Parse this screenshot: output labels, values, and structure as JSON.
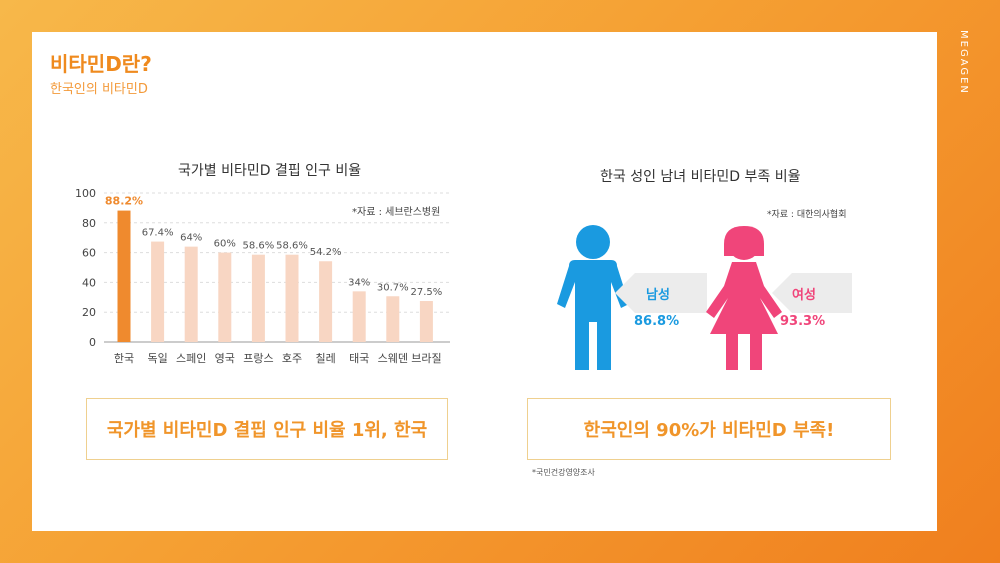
{
  "brand": "MEGAGEN",
  "header": {
    "title": "비타민D란?",
    "subtitle": "한국인의 비타민D"
  },
  "left_panel": {
    "source": "*자료 : 세브란스병원",
    "callout": "국가별 비타민D 결핍 인구 비율 1위, 한국"
  },
  "right_panel": {
    "title": "한국 성인 남녀 비타민D 부족 비율",
    "source": "*자료 : 대한의사협회",
    "male": {
      "label": "남성",
      "value": "86.8%",
      "color": "#1a9ae0"
    },
    "female": {
      "label": "여성",
      "value": "93.3%",
      "color": "#f0457a"
    },
    "callout": "한국인의 90%가 비타민D 부족!",
    "footnote": "*국민건강영양조사"
  },
  "colors": {
    "accent": "#ef8a1e",
    "bar_highlight": "#ef8a2e",
    "bar_normal": "#f8d6c3",
    "callout_border": "#efd08f"
  },
  "chart_data": {
    "type": "bar",
    "title": "국가별 비타민D 결핍 인구 비율",
    "categories": [
      "한국",
      "독일",
      "스페인",
      "영국",
      "프랑스",
      "호주",
      "칠레",
      "태국",
      "스웨덴",
      "브라질"
    ],
    "values": [
      88.2,
      67.4,
      64,
      60,
      58.6,
      58.6,
      54.2,
      34,
      30.7,
      27.5
    ],
    "data_labels": [
      "88.2%",
      "67.4%",
      "64%",
      "60%",
      "58.6%",
      "58.6%",
      "54.2%",
      "34%",
      "30.7%",
      "27.5%"
    ],
    "ylim": [
      0,
      100
    ],
    "yticks": [
      0,
      20,
      40,
      60,
      80,
      100
    ],
    "highlight_index": 0,
    "grid": true
  }
}
